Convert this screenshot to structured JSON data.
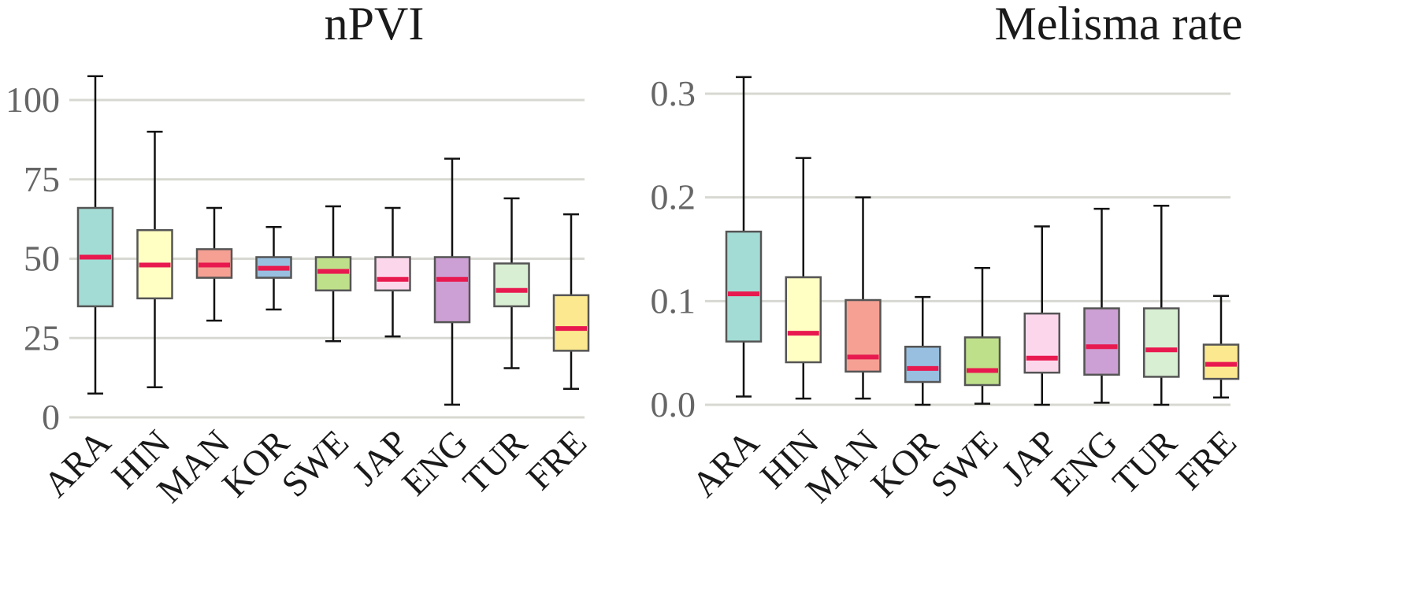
{
  "chart_data": [
    {
      "type": "box",
      "title": "nPVI",
      "xlabel": "",
      "ylabel": "",
      "ylim": [
        0,
        110
      ],
      "yticks": [
        0,
        25,
        50,
        75,
        100
      ],
      "ytick_labels": [
        "0",
        "25",
        "50",
        "75",
        "100"
      ],
      "grid": true,
      "categories": [
        "ARA",
        "HIN",
        "MAN",
        "KOR",
        "SWE",
        "JAP",
        "ENG",
        "TUR",
        "FRE"
      ],
      "boxes": [
        {
          "category": "ARA",
          "min": 7.5,
          "q1": 35,
          "median": 50.5,
          "q3": 66,
          "max": 107.5
        },
        {
          "category": "HIN",
          "min": 9.5,
          "q1": 37.5,
          "median": 48,
          "q3": 59,
          "max": 90
        },
        {
          "category": "MAN",
          "min": 30.5,
          "q1": 44,
          "median": 48,
          "q3": 53,
          "max": 66
        },
        {
          "category": "KOR",
          "min": 34,
          "q1": 44,
          "median": 47,
          "q3": 50.5,
          "max": 60
        },
        {
          "category": "SWE",
          "min": 24,
          "q1": 40,
          "median": 46,
          "q3": 50.5,
          "max": 66.5
        },
        {
          "category": "JAP",
          "min": 25.5,
          "q1": 40,
          "median": 43.5,
          "q3": 50.5,
          "max": 66
        },
        {
          "category": "ENG",
          "min": 4,
          "q1": 30,
          "median": 43.5,
          "q3": 50.5,
          "max": 81.5
        },
        {
          "category": "TUR",
          "min": 15.5,
          "q1": 35,
          "median": 40,
          "q3": 48.5,
          "max": 69
        },
        {
          "category": "FRE",
          "min": 9,
          "q1": 21,
          "median": 28,
          "q3": 38.5,
          "max": 64
        }
      ]
    },
    {
      "type": "box",
      "title": "Melisma rate",
      "xlabel": "",
      "ylabel": "",
      "ylim": [
        0,
        0.32
      ],
      "yticks": [
        0,
        0.1,
        0.2,
        0.3
      ],
      "ytick_labels": [
        "0.0",
        "0.1",
        "0.2",
        "0.3"
      ],
      "grid": true,
      "categories": [
        "ARA",
        "HIN",
        "MAN",
        "KOR",
        "SWE",
        "JAP",
        "ENG",
        "TUR",
        "FRE"
      ],
      "boxes": [
        {
          "category": "ARA",
          "min": 0.008,
          "q1": 0.061,
          "median": 0.107,
          "q3": 0.167,
          "max": 0.316
        },
        {
          "category": "HIN",
          "min": 0.006,
          "q1": 0.041,
          "median": 0.069,
          "q3": 0.123,
          "max": 0.238
        },
        {
          "category": "MAN",
          "min": 0.006,
          "q1": 0.032,
          "median": 0.046,
          "q3": 0.101,
          "max": 0.2
        },
        {
          "category": "KOR",
          "min": 0.0,
          "q1": 0.022,
          "median": 0.035,
          "q3": 0.056,
          "max": 0.104
        },
        {
          "category": "SWE",
          "min": 0.001,
          "q1": 0.019,
          "median": 0.033,
          "q3": 0.065,
          "max": 0.132
        },
        {
          "category": "JAP",
          "min": 0.0,
          "q1": 0.031,
          "median": 0.045,
          "q3": 0.088,
          "max": 0.172
        },
        {
          "category": "ENG",
          "min": 0.002,
          "q1": 0.029,
          "median": 0.056,
          "q3": 0.093,
          "max": 0.189
        },
        {
          "category": "TUR",
          "min": 0.0,
          "q1": 0.027,
          "median": 0.053,
          "q3": 0.093,
          "max": 0.192
        },
        {
          "category": "FRE",
          "min": 0.007,
          "q1": 0.025,
          "median": 0.039,
          "q3": 0.058,
          "max": 0.105
        }
      ]
    }
  ],
  "colors": {
    "ARA": "#a3dcd5",
    "HIN": "#ffffc4",
    "MAN": "#f5a093",
    "KOR": "#98bfdf",
    "SWE": "#bfe08a",
    "JAP": "#fcd7eb",
    "ENG": "#cca0d4",
    "TUR": "#d9efd3",
    "FRE": "#fce98f",
    "median": "#e8194f"
  }
}
